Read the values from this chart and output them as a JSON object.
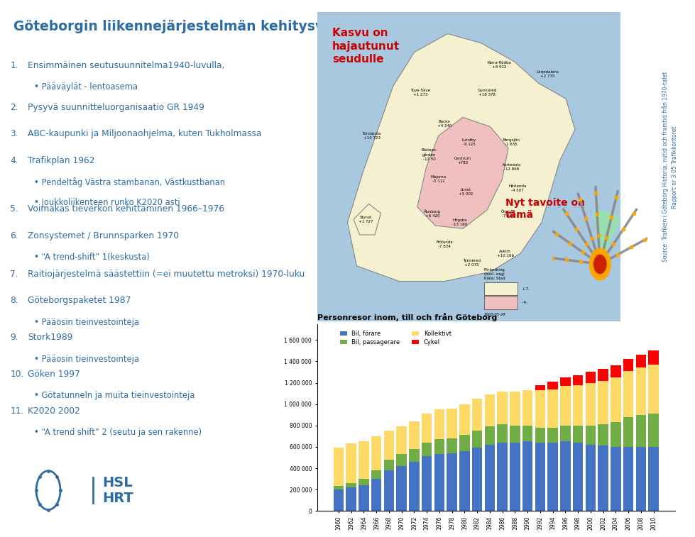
{
  "title": "Göteborgin liikennejärjestelmän kehitysvaiheita",
  "title_color": "#2E6DA4",
  "title_fontsize": 15,
  "bg_color": "#FFFFFF",
  "text_color": "#2E6DA4",
  "bullet_color": "#2E6DA4",
  "items": [
    {
      "num": "1.",
      "link": "Ensimmäinen seutusuunnitelma",
      "rest": "1940-luvulla,",
      "bullets": [
        "Pääväylät - lentoasema"
      ]
    },
    {
      "num": "2.",
      "link": "Pysyvä suunnitteluorganisaatio GR 1949",
      "rest": "",
      "bullets": []
    },
    {
      "num": "3.",
      "link": "ABC-kaupunki ja Miljoonaohjelma, kuten Tukholmassa",
      "rest": "",
      "bullets": []
    },
    {
      "num": "4.",
      "link": "Trafikplan",
      "rest": " 1962",
      "bullets": [
        "Pendeltåg Västra stambanan, Västkustbanan",
        "Joukkoliikenteen runko K2020 asti"
      ]
    },
    {
      "num": "5.",
      "link": "Voimakas tieverkon kehittäminen",
      "rest": " 1966–1976",
      "bullets": []
    },
    {
      "num": "6.",
      "link": "Zonsystemet / Brunnsparken",
      "rest": " 1970",
      "bullets": [
        "“A trend-shift” 1(keskusta)"
      ]
    },
    {
      "num": "7.",
      "link": "Raitiojärjestelmä säästettiin (=ei muutettu metroksi)",
      "rest": " 1970-luku",
      "bullets": []
    },
    {
      "num": "8.",
      "link": "Göteborgspaketet",
      "rest": " 1987",
      "bullets": [
        "Pääosin tieinvestointeja"
      ]
    },
    {
      "num": "9.",
      "link": "Stork",
      "rest": "1989",
      "bullets": [
        "Pääosin tieinvestointeja"
      ]
    },
    {
      "num": "10.",
      "link": "Göken",
      "rest": " 1997",
      "bullets": [
        "Götatunneln ja muita tieinvestointeja"
      ]
    },
    {
      "num": "11.",
      "link": "K2020",
      "rest": " 2002",
      "bullets": [
        "“A trend shift” 2 (seutu ja sen rakenne)"
      ]
    }
  ],
  "chart_title": "Personresor inom, till och från Göteborg",
  "chart_years": [
    1960,
    1962,
    1964,
    1966,
    1968,
    1970,
    1972,
    1974,
    1976,
    1978,
    1980,
    1982,
    1984,
    1986,
    1988,
    1990,
    1992,
    1994,
    1996,
    1998,
    2000,
    2002,
    2004,
    2006,
    2008,
    2010
  ],
  "bil_forare": [
    200000,
    220000,
    240000,
    300000,
    380000,
    420000,
    460000,
    510000,
    530000,
    540000,
    560000,
    590000,
    620000,
    640000,
    640000,
    650000,
    640000,
    640000,
    650000,
    640000,
    620000,
    610000,
    600000,
    600000,
    600000,
    600000
  ],
  "bil_passagerare": [
    30000,
    40000,
    60000,
    80000,
    100000,
    110000,
    120000,
    130000,
    140000,
    140000,
    150000,
    160000,
    170000,
    170000,
    160000,
    150000,
    140000,
    140000,
    150000,
    160000,
    180000,
    200000,
    230000,
    280000,
    300000,
    310000
  ],
  "kollektivt": [
    360000,
    370000,
    350000,
    320000,
    270000,
    260000,
    260000,
    270000,
    280000,
    280000,
    290000,
    300000,
    300000,
    310000,
    320000,
    330000,
    350000,
    360000,
    370000,
    380000,
    400000,
    410000,
    420000,
    430000,
    440000,
    460000
  ],
  "cykel": [
    0,
    0,
    0,
    0,
    0,
    0,
    0,
    0,
    0,
    0,
    0,
    0,
    0,
    0,
    0,
    0,
    50000,
    70000,
    80000,
    90000,
    100000,
    110000,
    110000,
    110000,
    120000,
    130000
  ],
  "color_bil_forare": "#4472C4",
  "color_bil_passagerare": "#70AD47",
  "color_kollektivt": "#FFD966",
  "color_cykel": "#FF0000",
  "map_annotation_kasvu": "Kasvu on\nhajautunut\nseudulle",
  "map_annotation_tavoite": "Nyt tavoite on\ntämä",
  "source_text": "Source: Trafiken i Göteborg Historia, nutid och framtid från 1970-talet\nRapport nr 3:05 Trafikkontoret",
  "beige": "#F5F0D0",
  "pink": "#F0C0C0",
  "water": "#A8C8E0"
}
